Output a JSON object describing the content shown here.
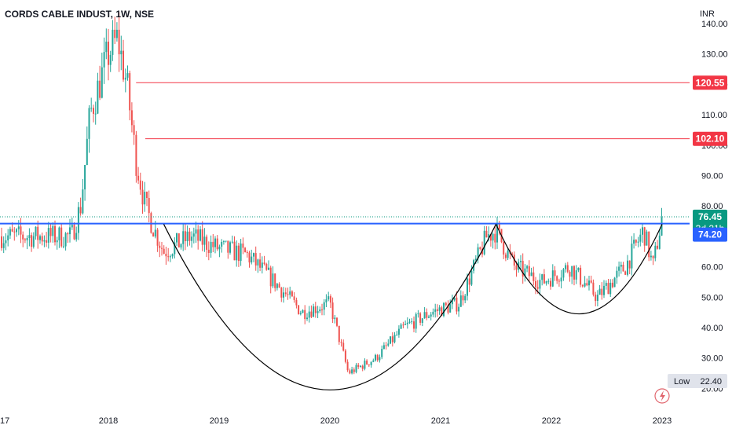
{
  "header": {
    "symbol_line": "CORDS CABLE INDUST, 1W, NSE",
    "currency": "INR"
  },
  "colors": {
    "up": "#26a69a",
    "down": "#ef5350",
    "resistance": "#f23645",
    "support": "#2962ff",
    "last_price_bg": "#089981",
    "grid": "#ffffff",
    "text": "#131722",
    "curve": "#000000"
  },
  "axis": {
    "y_labels": [
      "140.00",
      "130.00",
      "120.00",
      "110.00",
      "100.00",
      "90.00",
      "80.00",
      "70.00",
      "60.00",
      "50.00",
      "40.00",
      "30.00",
      "20.00"
    ],
    "x_labels": [
      "17",
      "2018",
      "2019",
      "2020",
      "2021",
      "2022",
      "2023"
    ]
  },
  "badges": {
    "resistance_upper": "120.55",
    "resistance_lower": "102.10",
    "last_price": "76.45",
    "countdown": "3d 21h",
    "support": "74.20",
    "low_label": "Low",
    "low_value": "22.40"
  },
  "icons": {
    "alert": "lightning-icon"
  },
  "chart_data": {
    "type": "candlestick",
    "title": "CORDS CABLE INDUST, 1W, NSE",
    "ylabel": "INR",
    "ylim": [
      17,
      145
    ],
    "x_range": [
      "2017-09",
      "2023-03"
    ],
    "x_ticks": [
      "17",
      "2018",
      "2019",
      "2020",
      "2021",
      "2022",
      "2023"
    ],
    "y_ticks": [
      20,
      30,
      40,
      50,
      60,
      70,
      80,
      90,
      100,
      110,
      120,
      130,
      140
    ],
    "grid": false,
    "price_path": [
      {
        "date": "2017-09",
        "close": 70
      },
      {
        "date": "2017-10",
        "close": 80
      },
      {
        "date": "2017-11",
        "close": 110
      },
      {
        "date": "2017-12",
        "close": 120
      },
      {
        "date": "2018-01",
        "close": 130
      },
      {
        "date": "2018-02",
        "close": 135
      },
      {
        "date": "2018-03",
        "close": 120
      },
      {
        "date": "2018-04",
        "close": 95
      },
      {
        "date": "2018-05",
        "close": 80
      },
      {
        "date": "2018-06",
        "close": 72
      },
      {
        "date": "2018-07",
        "close": 65
      },
      {
        "date": "2018-10",
        "close": 70
      },
      {
        "date": "2019-01",
        "close": 66
      },
      {
        "date": "2019-04",
        "close": 64
      },
      {
        "date": "2019-07",
        "close": 55
      },
      {
        "date": "2019-10",
        "close": 45
      },
      {
        "date": "2020-01",
        "close": 48
      },
      {
        "date": "2020-03",
        "close": 25
      },
      {
        "date": "2020-06",
        "close": 30
      },
      {
        "date": "2020-09",
        "close": 40
      },
      {
        "date": "2020-12",
        "close": 45
      },
      {
        "date": "2021-03",
        "close": 48
      },
      {
        "date": "2021-06",
        "close": 70
      },
      {
        "date": "2021-07",
        "close": 72
      },
      {
        "date": "2021-09",
        "close": 60
      },
      {
        "date": "2021-12",
        "close": 55
      },
      {
        "date": "2022-03",
        "close": 60
      },
      {
        "date": "2022-06",
        "close": 50
      },
      {
        "date": "2022-09",
        "close": 60
      },
      {
        "date": "2022-11",
        "close": 72
      },
      {
        "date": "2022-12",
        "close": 60
      },
      {
        "date": "2023-01",
        "close": 76.45
      }
    ],
    "horizontal_lines": [
      {
        "label": "120.55",
        "value": 120.55
      },
      {
        "label": "102.10",
        "value": 102.1
      },
      {
        "label": "74.20",
        "value": 74.2
      }
    ],
    "last_price": 76.45,
    "period_low": 22.4,
    "annotations": [
      "cup pattern 2018-2021",
      "cup pattern 2021-2023"
    ]
  }
}
